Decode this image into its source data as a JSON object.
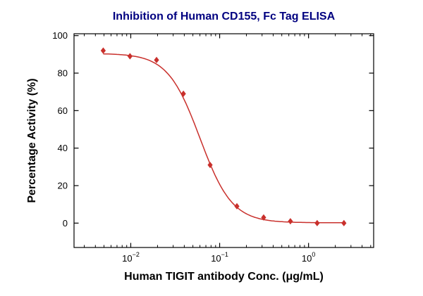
{
  "chart_data": {
    "type": "scatter",
    "title": "Inhibition of Human CD155, Fc Tag ELISA",
    "xlabel": "Human TIGIT antibody Conc. (μg/mL)",
    "ylabel": "Percentage Activity (%)",
    "x_scale": "log10",
    "xlim": [
      0.0023,
      5.4
    ],
    "ylim": [
      -13,
      101
    ],
    "y_ticks": [
      0,
      20,
      40,
      60,
      80,
      100
    ],
    "x_major_ticks": [
      0.01,
      0.1,
      1
    ],
    "grid": false,
    "legend": "none",
    "points": [
      {
        "x": 0.0049,
        "y": 92
      },
      {
        "x": 0.0098,
        "y": 89
      },
      {
        "x": 0.0195,
        "y": 87
      },
      {
        "x": 0.0391,
        "y": 69
      },
      {
        "x": 0.0781,
        "y": 31
      },
      {
        "x": 0.1563,
        "y": 9
      },
      {
        "x": 0.3125,
        "y": 3
      },
      {
        "x": 0.625,
        "y": 1
      },
      {
        "x": 1.25,
        "y": 0
      },
      {
        "x": 2.5,
        "y": 0
      }
    ],
    "fit_curve": {
      "model": "4PL",
      "top": 90.5,
      "bottom": 0.2,
      "ec50": 0.06,
      "hill": 2.4
    },
    "marker": "diamond",
    "colors": {
      "series": "#c9302c",
      "title": "#000080",
      "axis": "#000000",
      "background": "#ffffff"
    }
  }
}
